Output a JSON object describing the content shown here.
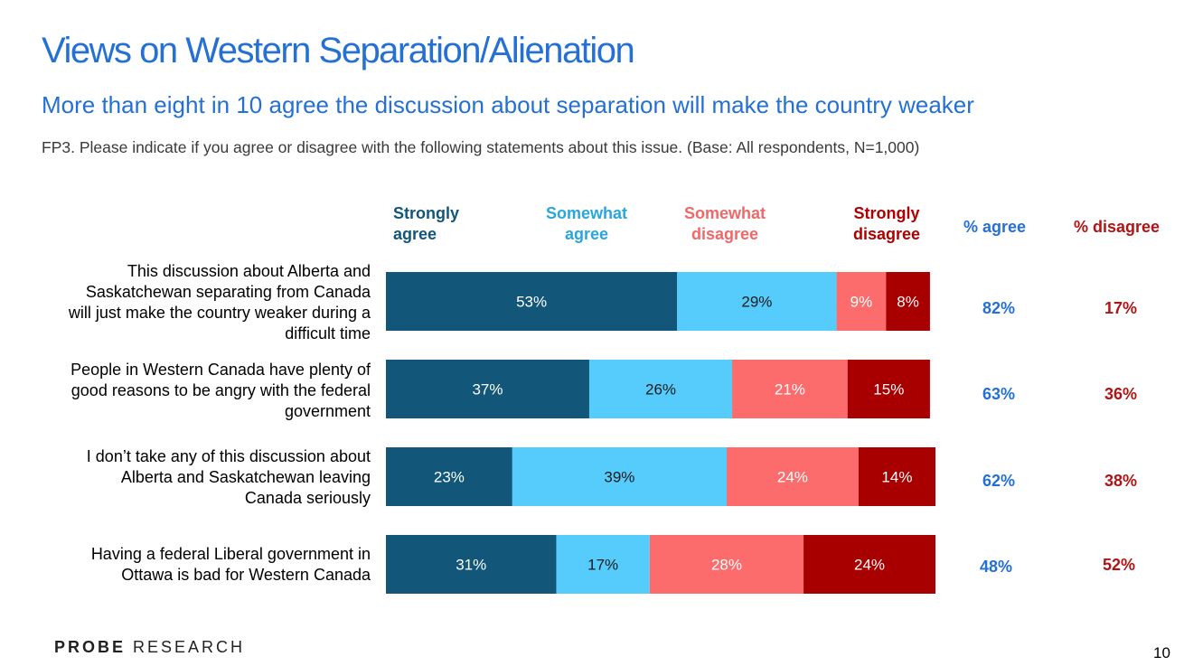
{
  "title": "Views on Western Separation/Alienation",
  "subtitle": "More than eight in 10 agree the discussion about separation will make the country weaker",
  "question": "FP3. Please indicate if you agree or disagree with the following statements about this issue. (Base: All respondents, N=1,000)",
  "legend": [
    {
      "label": "Strongly\nagree",
      "color": "#12567a"
    },
    {
      "label": "Somewhat\nagree",
      "color": "#55ccfc"
    },
    {
      "label": "Somewhat\ndisagree",
      "color": "#fc6c6c"
    },
    {
      "label": "Strongly\ndisagree",
      "color": "#a80000"
    }
  ],
  "columns": {
    "agree": "% agree",
    "disagree": "% disagree"
  },
  "colors": {
    "agree_text": "#2470d4",
    "disagree_text": "#b01515",
    "legend_sa": "#12567a",
    "legend_wa": "#29a6dc",
    "legend_wd": "#f06868",
    "legend_sd": "#b00000"
  },
  "chart_data": {
    "type": "bar",
    "stacked": true,
    "orientation": "horizontal",
    "unit": "%",
    "categories": [
      "This discussion about Alberta and Saskatchewan separating from Canada will just make the country weaker during a difficult time",
      "People in Western Canada have plenty of good reasons to be angry with the federal government",
      "I don’t take any of this discussion about Alberta and Saskatchewan leaving Canada seriously",
      "Having a federal Liberal government in Ottawa is bad for Western Canada"
    ],
    "series": [
      {
        "name": "Strongly agree",
        "values": [
          53,
          37,
          23,
          31
        ]
      },
      {
        "name": "Somewhat agree",
        "values": [
          29,
          26,
          39,
          17
        ]
      },
      {
        "name": "Somewhat disagree",
        "values": [
          9,
          21,
          24,
          28
        ]
      },
      {
        "name": "Strongly disagree",
        "values": [
          8,
          15,
          14,
          24
        ]
      }
    ],
    "value_labels": [
      [
        "53%",
        "29%",
        "9%",
        "8%"
      ],
      [
        "37%",
        "26%",
        "21%",
        "15%"
      ],
      [
        "23%",
        "39%",
        "24%",
        "14%"
      ],
      [
        "31%",
        "17%",
        "28%",
        "24%"
      ]
    ],
    "agree_totals": [
      "82%",
      "63%",
      "62%",
      "48%"
    ],
    "disagree_totals": [
      "17%",
      "36%",
      "38%",
      "52%"
    ]
  },
  "row_labels": [
    "This discussion about Alberta and\nSaskatchewan separating from Canada\nwill just make the country weaker during a\ndifficult time",
    "People in Western Canada have plenty of\ngood reasons to be angry with the federal\ngovernment",
    "I don’t take any of this discussion about\nAlberta and Saskatchewan leaving\nCanada seriously",
    "Having a federal Liberal government in\nOttawa is bad for Western Canada"
  ],
  "footer": {
    "logo_bold": "PROBE",
    "logo_light": "RESEARCH",
    "page_number": "10"
  }
}
